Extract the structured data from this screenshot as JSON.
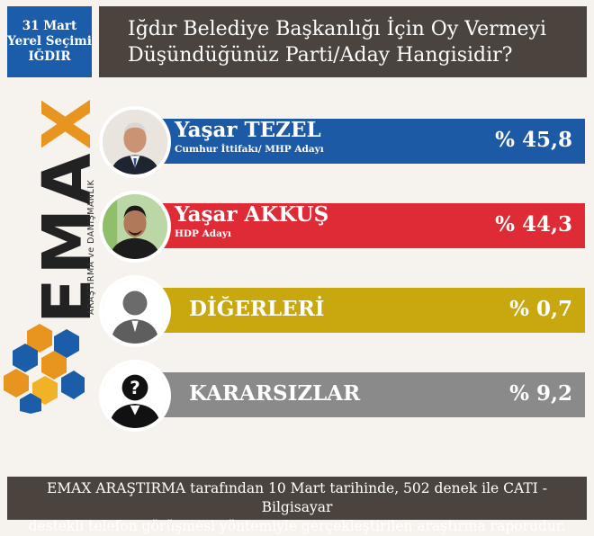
{
  "header": {
    "date_line1": "31 Mart",
    "date_line2": "Yerel Seçimi",
    "date_line3": "IĞDIR",
    "title_line1": "Iğdır Belediye Başkanlığı İçin Oy Vermeyi",
    "title_line2": "Düşündüğünüz Parti/Aday Hangisidir?"
  },
  "brand": {
    "word_main": "EMA",
    "word_accent": "X",
    "subtitle": "ARAŞTIRMA ve DANIŞMANLIK"
  },
  "chart_data": {
    "type": "bar",
    "unit_prefix": "% ",
    "categories": [
      "Yaşar TEZEL",
      "Yaşar AKKUŞ",
      "DİĞERLERİ",
      "KARARSIZLAR"
    ],
    "subtitles": [
      "Cumhur İttifakı/ MHP Adayı",
      "HDP Adayı",
      "",
      ""
    ],
    "values": [
      45.8,
      44.3,
      0.7,
      9.2
    ],
    "value_labels": [
      "% 45,8",
      "% 44,3",
      "% 0,7",
      "% 9,2"
    ],
    "colors": [
      "#1d5aa6",
      "#de2b36",
      "#c8a80e",
      "#8a8a8a"
    ],
    "avatar_icons": [
      "candidate-photo-icon",
      "candidate-photo-icon",
      "person-silhouette-icon",
      "unknown-person-icon"
    ]
  },
  "footer": {
    "line1": "EMAX ARAŞTIRMA tarafından 10 Mart tarihinde, 502 denek ile CATI - Bilgisayar",
    "line2": "destekli telefon görüşmesi yöntemiyle gerçekleştirilen araştırma raporudur."
  },
  "colors": {
    "header_dark": "#4b443e",
    "date_blue": "#1b5da8",
    "background": "#f6f3ee",
    "accent_orange": "#e8951f"
  }
}
